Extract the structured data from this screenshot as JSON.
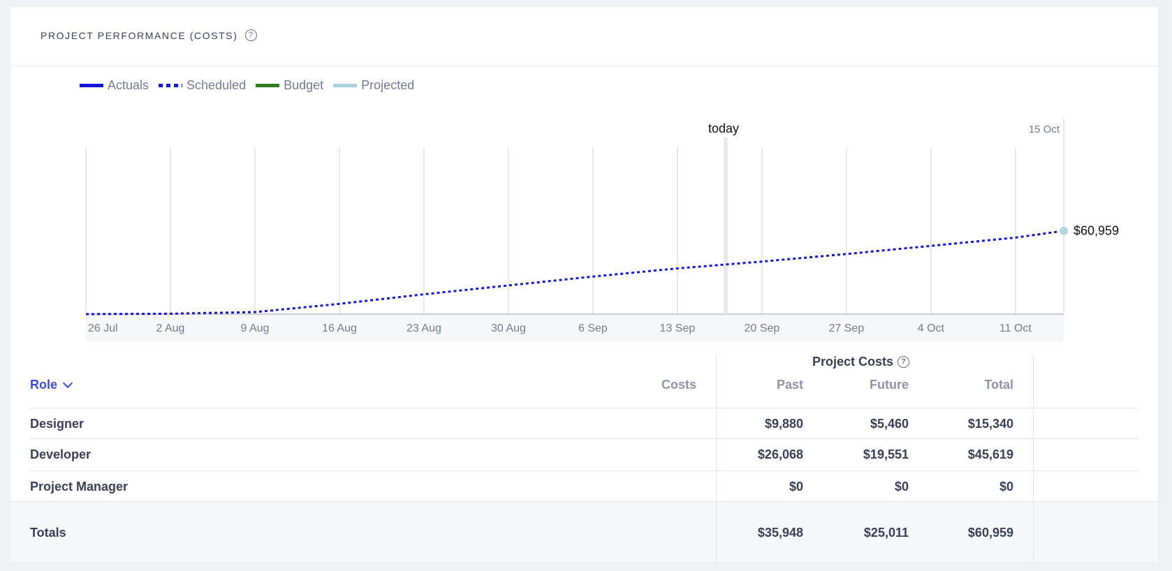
{
  "header": {
    "title": "PROJECT PERFORMANCE (COSTS)",
    "help_glyph": "?"
  },
  "legend": [
    {
      "label": "Actuals",
      "color": "#1414d8",
      "style": "solid"
    },
    {
      "label": "Scheduled",
      "color": "#1414d8",
      "style": "dotted"
    },
    {
      "label": "Budget",
      "color": "#2e7d1e",
      "style": "solid"
    },
    {
      "label": "Projected",
      "color": "#a8d3dc",
      "style": "solid"
    }
  ],
  "chart_data": {
    "type": "line",
    "x_ticks": [
      "26 Jul",
      "2 Aug",
      "9 Aug",
      "16 Aug",
      "23 Aug",
      "30 Aug",
      "6 Sep",
      "13 Sep",
      "20 Sep",
      "27 Sep",
      "4 Oct",
      "11 Oct"
    ],
    "end_date_label": "15 Oct",
    "today_label": "today",
    "today_date": "2021-09-17",
    "x_start": "2021-07-26",
    "x_end": "2021-10-15",
    "ylim": [
      0,
      230000
    ],
    "series": [
      {
        "name": "Scheduled",
        "style": "dotted",
        "color": "#1414d8",
        "points": [
          [
            "2021-07-26",
            0
          ],
          [
            "2021-08-02",
            300
          ],
          [
            "2021-08-09",
            1500
          ],
          [
            "2021-08-16",
            7500
          ],
          [
            "2021-08-23",
            14500
          ],
          [
            "2021-08-30",
            21000
          ],
          [
            "2021-09-06",
            27500
          ],
          [
            "2021-09-13",
            33500
          ],
          [
            "2021-09-20",
            38500
          ],
          [
            "2021-09-27",
            44000
          ],
          [
            "2021-10-04",
            50000
          ],
          [
            "2021-10-11",
            56000
          ],
          [
            "2021-10-15",
            60959
          ]
        ]
      }
    ],
    "end_value_label": "$60,959"
  },
  "table": {
    "role_header": "Role",
    "costs_header": "Costs",
    "group_header": "Project Costs",
    "columns": [
      "Past",
      "Future",
      "Total"
    ],
    "rows": [
      {
        "role": "Designer",
        "past": "$9,880",
        "future": "$5,460",
        "total": "$15,340"
      },
      {
        "role": "Developer",
        "past": "$26,068",
        "future": "$19,551",
        "total": "$45,619"
      },
      {
        "role": "Project Manager",
        "past": "$0",
        "future": "$0",
        "total": "$0"
      }
    ],
    "totals": {
      "label": "Totals",
      "past": "$35,948",
      "future": "$25,011",
      "total": "$60,959"
    }
  }
}
